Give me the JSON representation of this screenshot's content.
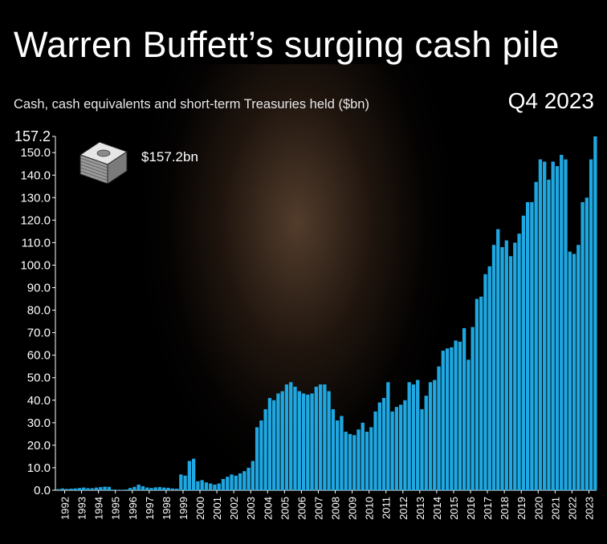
{
  "header": {
    "title": "Warren Buffett’s surging cash pile",
    "subtitle": "Cash, cash equivalents and short-term Treasuries held ($bn)",
    "period": "Q4 2023"
  },
  "annotation": {
    "label": "$157.2bn",
    "icon": "money-stack-icon"
  },
  "colors": {
    "background": "#000000",
    "bar": "#1ea7e1",
    "axis": "#ffffff",
    "tick_text": "#ffffff",
    "top_tick_text": "#ffffff"
  },
  "chart_data": {
    "type": "bar",
    "title": "Warren Buffett’s surging cash pile",
    "ylabel": "Cash, cash equivalents and short-term Treasuries held ($bn)",
    "xlabel": "",
    "ylim": [
      0,
      157.2
    ],
    "yticks": [
      "0.0",
      "10.0",
      "20.0",
      "30.0",
      "40.0",
      "50.0",
      "60.0",
      "70.0",
      "80.0",
      "90.0",
      "100.0",
      "110.0",
      "120.0",
      "130.0",
      "140.0",
      "150.0"
    ],
    "ytick_values": [
      0,
      10,
      20,
      30,
      40,
      50,
      60,
      70,
      80,
      90,
      100,
      110,
      120,
      130,
      140,
      150
    ],
    "top_tick_label": "157.2",
    "years": [
      "1992",
      "1993",
      "1994",
      "1995",
      "1996",
      "1997",
      "1998",
      "1999",
      "2000",
      "2001",
      "2002",
      "2003",
      "2004",
      "2005",
      "2006",
      "2007",
      "2008",
      "2009",
      "2010",
      "2011",
      "2012",
      "2013",
      "2014",
      "2015",
      "2016",
      "2017",
      "2018",
      "2019",
      "2020",
      "2021",
      "2022",
      "2023"
    ],
    "frequency": "quarterly",
    "values": [
      0.5,
      0.8,
      0.6,
      0.7,
      0.8,
      1.0,
      1.2,
      0.9,
      0.9,
      1.2,
      1.4,
      1.6,
      1.5,
      0.3,
      0.2,
      0.2,
      0.3,
      1.0,
      1.5,
      2.5,
      1.8,
      1.2,
      1.0,
      1.3,
      1.4,
      1.2,
      1.1,
      0.8,
      0.7,
      7.0,
      6.5,
      13.0,
      14.0,
      4.0,
      4.5,
      3.5,
      3.0,
      2.5,
      3.0,
      5.0,
      6.0,
      7.0,
      6.5,
      7.5,
      8.5,
      10.0,
      13.0,
      28.0,
      31.0,
      36.0,
      41.0,
      40.0,
      43.0,
      44.0,
      47.0,
      48.0,
      46.0,
      44.0,
      43.0,
      42.5,
      43.0,
      46.0,
      47.0,
      47.0,
      44.0,
      36.0,
      31.0,
      33.0,
      26.0,
      25.0,
      24.5,
      27.0,
      30.0,
      26.0,
      28.0,
      35.0,
      39.0,
      41.0,
      48.0,
      35.0,
      37.0,
      38.0,
      40.0,
      48.0,
      47.0,
      49.0,
      36.0,
      42.0,
      48.0,
      49.0,
      55.0,
      62.0,
      63.0,
      63.5,
      66.5,
      66.0,
      72.0,
      58.0,
      72.5,
      85.0,
      86.0,
      96.0,
      99.5,
      109.0,
      116.0,
      108.0,
      111.0,
      104.0,
      110.0,
      114.0,
      122.0,
      128.0,
      128.0,
      137.0,
      147.0,
      146.0,
      138.0,
      146.0,
      144.0,
      149.0,
      147.0,
      106.0,
      105.0,
      109.0,
      128.0,
      130.0,
      147.0,
      157.2
    ]
  }
}
